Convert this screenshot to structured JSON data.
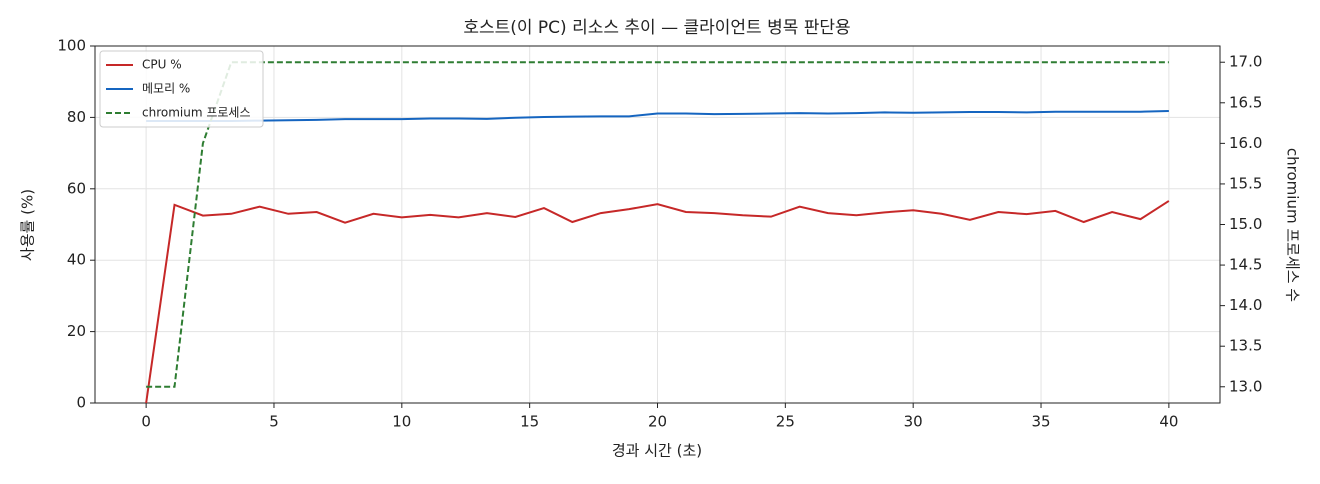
{
  "chart_data": {
    "type": "line",
    "title": "호스트(이 PC) 리소스 추이 — 클라이언트 병목 판단용",
    "x_label": "경과 시간 (초)",
    "y_label": "사용률 (%)",
    "y2_label": "chromium 프로세스 수",
    "x": [
      0,
      1.11,
      2.22,
      3.33,
      4.44,
      5.56,
      6.67,
      7.78,
      8.89,
      10,
      11.11,
      12.22,
      13.33,
      14.44,
      15.56,
      16.67,
      17.78,
      18.89,
      20,
      21.11,
      22.22,
      23.33,
      24.44,
      25.56,
      26.67,
      27.78,
      28.89,
      30,
      31.11,
      32.22,
      33.33,
      34.44,
      35.56,
      36.67,
      37.78,
      38.89,
      40
    ],
    "series": [
      {
        "name": "CPU %",
        "color": "#c62828",
        "linestyle": "solid",
        "values": [
          0,
          55.5,
          52.5,
          53,
          55,
          53,
          53.5,
          50.5,
          53,
          52,
          52.7,
          52,
          53.2,
          52.1,
          54.6,
          50.7,
          53.2,
          54.3,
          55.7,
          53.5,
          53.2,
          52.6,
          52.2,
          55,
          53.2,
          52.6,
          53.4,
          54,
          53,
          51.3,
          53.5,
          52.9,
          53.8,
          50.7,
          53.5,
          51.5,
          56.6
        ]
      },
      {
        "name": "메모리 %",
        "color": "#1565c0",
        "linestyle": "solid",
        "values": [
          79,
          79,
          79,
          79,
          79.1,
          79.2,
          79.3,
          79.5,
          79.5,
          79.5,
          79.7,
          79.7,
          79.6,
          79.9,
          80.1,
          80.2,
          80.3,
          80.3,
          81.1,
          81.1,
          80.9,
          81,
          81.1,
          81.2,
          81.1,
          81.2,
          81.4,
          81.3,
          81.4,
          81.5,
          81.5,
          81.4,
          81.6,
          81.6,
          81.6,
          81.6,
          81.8
        ]
      },
      {
        "name": "chromium 프로세스",
        "color": "#2e7d32",
        "linestyle": "dashed",
        "axis": "y2",
        "values": [
          13,
          13,
          16,
          17,
          17,
          17,
          17,
          17,
          17,
          17,
          17,
          17,
          17,
          17,
          17,
          17,
          17,
          17,
          17,
          17,
          17,
          17,
          17,
          17,
          17,
          17,
          17,
          17,
          17,
          17,
          17,
          17,
          17,
          17,
          17,
          17,
          17
        ]
      }
    ],
    "xlim": [
      -2,
      42
    ],
    "xticks": [
      0,
      5,
      10,
      15,
      20,
      25,
      30,
      35,
      40
    ],
    "ylim": [
      0,
      100
    ],
    "yticks": [
      0,
      20,
      40,
      60,
      80,
      100
    ],
    "y2lim": [
      12.8,
      17.2
    ],
    "y2ticks": [
      {
        "value": 13,
        "label": "13.0"
      },
      {
        "value": 13.5,
        "label": "13.5"
      },
      {
        "value": 14,
        "label": "14.0"
      },
      {
        "value": 14.5,
        "label": "14.5"
      },
      {
        "value": 15,
        "label": "15.0"
      },
      {
        "value": 15.5,
        "label": "15.5"
      },
      {
        "value": 16,
        "label": "16.0"
      },
      {
        "value": 16.5,
        "label": "16.5"
      },
      {
        "value": 17,
        "label": "17.0"
      }
    ],
    "grid": true,
    "legend": "upper left"
  }
}
